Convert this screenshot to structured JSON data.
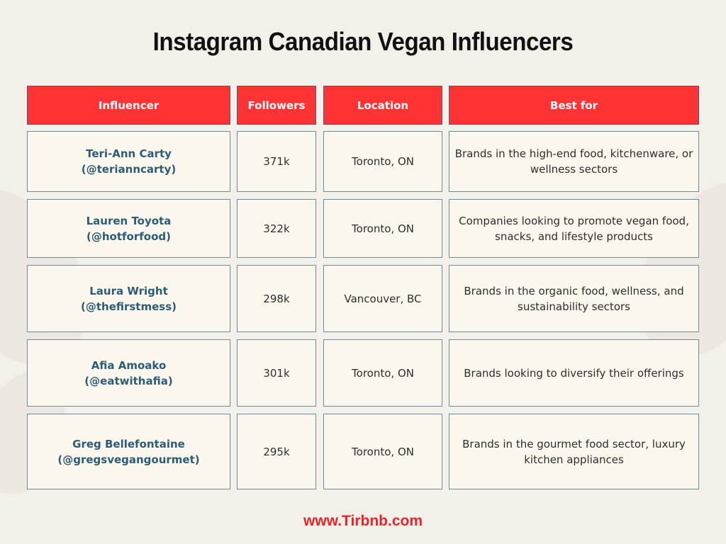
{
  "title": "Instagram Canadian Vegan Influencers",
  "headers": {
    "influencer": "Influencer",
    "followers": "Followers",
    "location": "Location",
    "best_for": "Best for"
  },
  "rows": [
    {
      "name": "Teri-Ann Carty",
      "handle": "(@terianncarty)",
      "followers": "371k",
      "location": "Toronto, ON",
      "best_for": "Brands in the high-end food, kitchenware, or wellness sectors"
    },
    {
      "name": "Lauren Toyota",
      "handle": "(@hotforfood)",
      "followers": "322k",
      "location": "Toronto, ON",
      "best_for": "Companies looking to promote vegan food, snacks, and lifestyle products"
    },
    {
      "name": "Laura Wright",
      "handle": "(@thefirstmess)",
      "followers": "298k",
      "location": "Vancouver, BC",
      "best_for": "Brands in the organic food, wellness, and sustainability sectors"
    },
    {
      "name": "Afia Amoako",
      "handle": "(@eatwithafia)",
      "followers": "301k",
      "location": "Toronto, ON",
      "best_for": "Brands looking to diversify their offerings"
    },
    {
      "name": "Greg Bellefontaine",
      "handle": "(@gregsvegangourmet)",
      "followers": "295k",
      "location": "Toronto, ON",
      "best_for": "Brands in the gourmet food sector, luxury kitchen appliances"
    }
  ],
  "footer": "www.Tirbnb.com",
  "colors": {
    "header_bg": "#ff3333",
    "name_text": "#2b5c78",
    "footer_text": "#e8232a",
    "cell_bg": "#fbf7ec"
  }
}
